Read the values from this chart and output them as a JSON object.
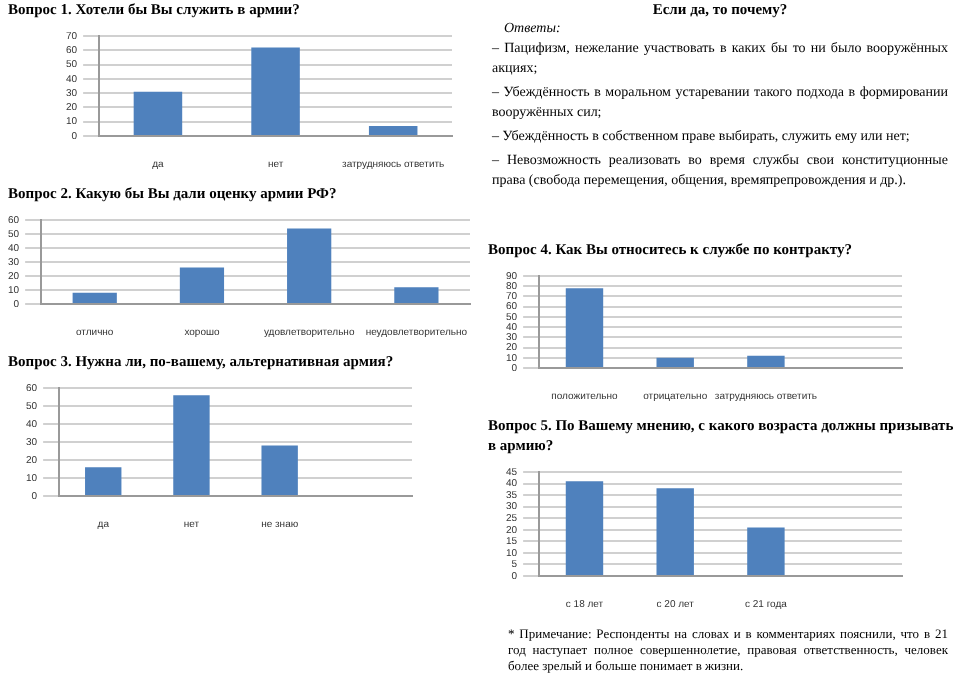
{
  "chart_data": [
    {
      "type": "bar",
      "title": "Вопрос 1. Хотели бы Вы служить в армии?",
      "categories": [
        "да",
        "нет",
        "затрудняюсь ответить"
      ],
      "values": [
        31,
        62,
        7
      ],
      "color": "#4f81bd",
      "ylim": [
        0,
        70
      ],
      "yticks": [
        0,
        10,
        20,
        30,
        40,
        50,
        60,
        70
      ],
      "grid": "y",
      "legend": false
    },
    {
      "type": "bar",
      "title": "Вопрос 2. Какую бы Вы дали оценку армии РФ?",
      "categories": [
        "отлично",
        "хорошо",
        "удовлетворительно",
        "неудовлетворительно"
      ],
      "values": [
        8,
        26,
        54,
        12
      ],
      "color": "#4f81bd",
      "ylim": [
        0,
        60
      ],
      "yticks": [
        0,
        10,
        20,
        30,
        40,
        50,
        60
      ],
      "grid": "y",
      "legend": false
    },
    {
      "type": "bar",
      "title": "Вопрос 3. Нужна ли, по-вашему, альтернативная армия?",
      "categories": [
        "да",
        "нет",
        "не знаю",
        null
      ],
      "values": [
        16,
        56,
        28,
        null
      ],
      "color": "#4f81bd",
      "ylim": [
        0,
        60
      ],
      "yticks": [
        0,
        10,
        20,
        30,
        40,
        50,
        60
      ],
      "grid": "y",
      "legend": false
    },
    {
      "type": "other",
      "title": "Если да, то почему?",
      "subtitle": "Ответы:",
      "annotations": [
        "– Пацифизм, нежелание участвовать в каких бы то ни было вооружённых акциях;",
        "– Убеждённость в моральном устаревании такого подхода в формировании вооружённых сил;",
        "– Убеждённость в собственном праве выбирать, служить ему или нет;",
        "– Невозможность реализовать во время службы свои конституционные права (свобода перемещения, общения, времяпрепровождения и др.)."
      ]
    },
    {
      "type": "bar",
      "title": "Вопрос 4. Как Вы относитесь к службе по контракту?",
      "categories": [
        "положительно",
        "отрицательно",
        "затрудняюсь ответить",
        null
      ],
      "values": [
        78,
        10,
        12,
        null
      ],
      "color": "#4f81bd",
      "ylim": [
        0,
        90
      ],
      "yticks": [
        0,
        10,
        20,
        30,
        40,
        50,
        60,
        70,
        80,
        90
      ],
      "grid": "y",
      "legend": false
    },
    {
      "type": "bar",
      "title": "Вопрос 5. По Вашему мнению, с какого возраста должны призывать в армию?",
      "categories": [
        "с 18 лет",
        "с 20 лет",
        "с 21 года",
        null
      ],
      "values": [
        41,
        38,
        21,
        null
      ],
      "color": "#4f81bd",
      "ylim": [
        0,
        45
      ],
      "yticks": [
        0,
        5,
        10,
        15,
        20,
        25,
        30,
        35,
        40,
        45
      ],
      "grid": "y",
      "legend": false,
      "annotations": [
        "* Примечание: Респонденты на словах и в комментариях пояснили, что в 21 год наступает полное совершеннолетие, правовая ответственность, человек более зрелый и больше понимает в жизни."
      ]
    }
  ]
}
